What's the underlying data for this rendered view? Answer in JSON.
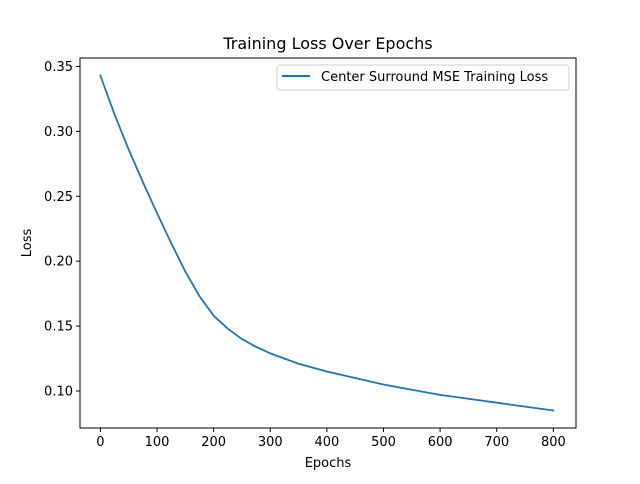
{
  "chart_data": {
    "type": "line",
    "title": "Training Loss Over Epochs",
    "xlabel": "Epochs",
    "ylabel": "Loss",
    "xlim": [
      -36,
      840
    ],
    "ylim": [
      0.0715,
      0.3565
    ],
    "xticks": [
      0,
      100,
      200,
      300,
      400,
      500,
      600,
      700,
      800
    ],
    "xtick_labels": [
      "0",
      "100",
      "200",
      "300",
      "400",
      "500",
      "600",
      "700",
      "800"
    ],
    "yticks": [
      0.1,
      0.15,
      0.2,
      0.25,
      0.3,
      0.35
    ],
    "ytick_labels": [
      "0.10",
      "0.15",
      "0.20",
      "0.25",
      "0.30",
      "0.35"
    ],
    "grid": false,
    "legend_position": "upper right",
    "series": [
      {
        "name": "Center Surround MSE Training Loss",
        "color": "#1f77b4",
        "x": [
          0,
          25,
          50,
          75,
          100,
          125,
          150,
          175,
          200,
          225,
          250,
          275,
          300,
          350,
          400,
          450,
          500,
          550,
          600,
          650,
          700,
          750,
          800
        ],
        "y": [
          0.343,
          0.313,
          0.286,
          0.261,
          0.237,
          0.214,
          0.192,
          0.173,
          0.158,
          0.148,
          0.14,
          0.134,
          0.129,
          0.121,
          0.115,
          0.11,
          0.105,
          0.101,
          0.097,
          0.094,
          0.091,
          0.088,
          0.085
        ]
      }
    ]
  }
}
